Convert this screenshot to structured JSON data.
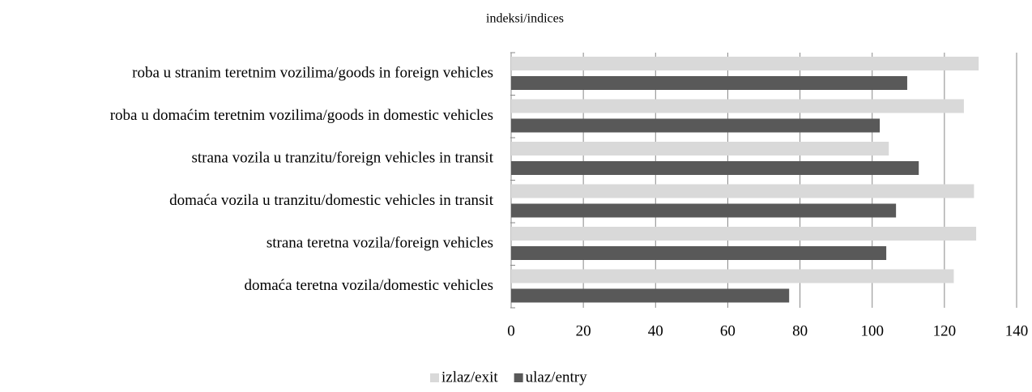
{
  "chart_data": {
    "type": "bar",
    "orientation": "horizontal",
    "title": "indeksi/indices",
    "categories": [
      "roba u stranim teretnim vozilima/goods in foreign vehicles",
      "roba u domaćim teretnim vozilima/goods in domestic vehicles",
      "strana vozila u tranzitu/foreign vehicles in transit",
      "domaća vozila u tranzitu/domestic vehicles in transit",
      "strana teretna vozila/foreign vehicles",
      "domaća teretna vozila/domestic vehicles"
    ],
    "series": [
      {
        "name": "izlaz/exit",
        "color": "#d9d9d9",
        "values": [
          129.5,
          125.4,
          104.6,
          128.2,
          128.8,
          122.6
        ]
      },
      {
        "name": "ulaz/entry",
        "color": "#595959",
        "values": [
          109.7,
          102.1,
          112.9,
          106.6,
          103.9,
          77
        ]
      }
    ],
    "xlim": [
      0,
      140
    ],
    "xticks": [
      0,
      20,
      40,
      60,
      80,
      100,
      120,
      140
    ],
    "grid": true,
    "legend": "bottom"
  }
}
